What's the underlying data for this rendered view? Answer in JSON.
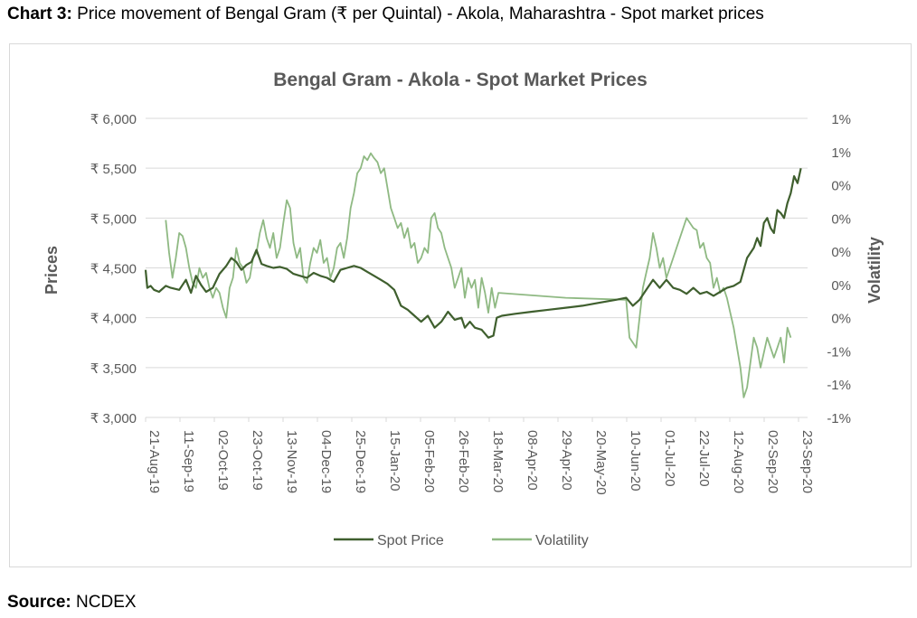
{
  "caption": {
    "label": "Chart 3:",
    "text": "Price movement of Bengal Gram (₹ per Quintal) - Akola, Maharashtra - Spot market prices"
  },
  "source": {
    "label": "Source:",
    "text": "NCDEX"
  },
  "colors": {
    "spot": "#3f5f2e",
    "volatility": "#8fb983",
    "grid": "#d9d9d9",
    "axis_text": "#595959",
    "title": "#595959"
  },
  "chart_data": {
    "type": "line",
    "title": "Bengal Gram - Akola - Spot Market Prices",
    "ylabel": "Prices",
    "y2label": "Volatility",
    "ylim": [
      3000,
      6000
    ],
    "y_ticks": [
      "₹ 6,000",
      "₹ 5,500",
      "₹ 5,000",
      "₹ 4,500",
      "₹ 4,000",
      "₹ 3,500",
      "₹ 3,000"
    ],
    "y2_ticks": [
      "1%",
      "1%",
      "0%",
      "0%",
      "0%",
      "0%",
      "0%",
      "-1%",
      "-1%",
      "-1%"
    ],
    "x_ticks": [
      "21-Aug-19",
      "11-Sep-19",
      "02-Oct-19",
      "23-Oct-19",
      "13-Nov-19",
      "04-Dec-19",
      "25-Dec-19",
      "15-Jan-20",
      "05-Feb-20",
      "26-Feb-20",
      "18-Mar-20",
      "08-Apr-20",
      "29-Apr-20",
      "20-May-20",
      "10-Jun-20",
      "01-Jul-20",
      "22-Jul-20",
      "12-Aug-20",
      "02-Sep-20",
      "23-Sep-20"
    ],
    "legend": [
      "Spot Price",
      "Volatility"
    ],
    "legend_position": "bottom",
    "series": [
      {
        "name": "Spot Price",
        "axis": "left",
        "points": [
          [
            0,
            4480
          ],
          [
            1,
            4300
          ],
          [
            3,
            4320
          ],
          [
            5,
            4280
          ],
          [
            8,
            4260
          ],
          [
            12,
            4320
          ],
          [
            15,
            4300
          ],
          [
            20,
            4280
          ],
          [
            24,
            4380
          ],
          [
            27,
            4250
          ],
          [
            30,
            4420
          ],
          [
            33,
            4330
          ],
          [
            36,
            4260
          ],
          [
            40,
            4300
          ],
          [
            44,
            4440
          ],
          [
            48,
            4520
          ],
          [
            51,
            4600
          ],
          [
            54,
            4560
          ],
          [
            57,
            4480
          ],
          [
            60,
            4530
          ],
          [
            63,
            4560
          ],
          [
            66,
            4680
          ],
          [
            69,
            4540
          ],
          [
            72,
            4520
          ],
          [
            76,
            4500
          ],
          [
            80,
            4510
          ],
          [
            84,
            4490
          ],
          [
            88,
            4440
          ],
          [
            92,
            4420
          ],
          [
            96,
            4400
          ],
          [
            100,
            4450
          ],
          [
            104,
            4420
          ],
          [
            108,
            4400
          ],
          [
            112,
            4360
          ],
          [
            116,
            4480
          ],
          [
            120,
            4500
          ],
          [
            124,
            4520
          ],
          [
            128,
            4500
          ],
          [
            132,
            4460
          ],
          [
            136,
            4420
          ],
          [
            140,
            4380
          ],
          [
            144,
            4340
          ],
          [
            148,
            4280
          ],
          [
            152,
            4120
          ],
          [
            156,
            4080
          ],
          [
            160,
            4020
          ],
          [
            164,
            3960
          ],
          [
            168,
            4020
          ],
          [
            172,
            3900
          ],
          [
            176,
            3960
          ],
          [
            180,
            4060
          ],
          [
            184,
            3980
          ],
          [
            188,
            4000
          ],
          [
            190,
            3900
          ],
          [
            193,
            3960
          ],
          [
            196,
            3900
          ],
          [
            200,
            3880
          ],
          [
            204,
            3800
          ],
          [
            207,
            3820
          ],
          [
            209,
            4000
          ],
          [
            212,
            4020
          ],
          [
            220,
            4040
          ],
          [
            230,
            4060
          ],
          [
            240,
            4080
          ],
          [
            250,
            4100
          ],
          [
            260,
            4120
          ],
          [
            270,
            4150
          ],
          [
            280,
            4180
          ],
          [
            286,
            4200
          ],
          [
            290,
            4120
          ],
          [
            294,
            4180
          ],
          [
            298,
            4280
          ],
          [
            302,
            4380
          ],
          [
            306,
            4300
          ],
          [
            310,
            4380
          ],
          [
            314,
            4300
          ],
          [
            318,
            4280
          ],
          [
            322,
            4240
          ],
          [
            326,
            4300
          ],
          [
            330,
            4240
          ],
          [
            334,
            4260
          ],
          [
            338,
            4220
          ],
          [
            342,
            4260
          ],
          [
            346,
            4300
          ],
          [
            350,
            4320
          ],
          [
            354,
            4360
          ],
          [
            358,
            4600
          ],
          [
            362,
            4700
          ],
          [
            364,
            4800
          ],
          [
            366,
            4720
          ],
          [
            368,
            4950
          ],
          [
            370,
            5000
          ],
          [
            372,
            4900
          ],
          [
            374,
            4850
          ],
          [
            376,
            5080
          ],
          [
            378,
            5050
          ],
          [
            380,
            5000
          ],
          [
            382,
            5150
          ],
          [
            384,
            5250
          ],
          [
            386,
            5420
          ],
          [
            388,
            5350
          ],
          [
            390,
            5500
          ]
        ]
      },
      {
        "name": "Volatility",
        "axis": "right",
        "points": [
          [
            12,
            4980
          ],
          [
            14,
            4650
          ],
          [
            16,
            4400
          ],
          [
            18,
            4600
          ],
          [
            20,
            4850
          ],
          [
            22,
            4820
          ],
          [
            24,
            4700
          ],
          [
            26,
            4500
          ],
          [
            28,
            4350
          ],
          [
            30,
            4300
          ],
          [
            32,
            4500
          ],
          [
            34,
            4400
          ],
          [
            36,
            4450
          ],
          [
            38,
            4300
          ],
          [
            40,
            4200
          ],
          [
            42,
            4300
          ],
          [
            44,
            4250
          ],
          [
            46,
            4100
          ],
          [
            48,
            4000
          ],
          [
            50,
            4300
          ],
          [
            52,
            4400
          ],
          [
            54,
            4700
          ],
          [
            56,
            4550
          ],
          [
            58,
            4500
          ],
          [
            60,
            4350
          ],
          [
            62,
            4400
          ],
          [
            64,
            4600
          ],
          [
            66,
            4650
          ],
          [
            68,
            4850
          ],
          [
            70,
            4980
          ],
          [
            72,
            4800
          ],
          [
            74,
            4700
          ],
          [
            76,
            4850
          ],
          [
            78,
            4600
          ],
          [
            80,
            4700
          ],
          [
            82,
            4950
          ],
          [
            84,
            5180
          ],
          [
            86,
            5100
          ],
          [
            88,
            4750
          ],
          [
            90,
            4600
          ],
          [
            92,
            4700
          ],
          [
            94,
            4400
          ],
          [
            96,
            4350
          ],
          [
            98,
            4550
          ],
          [
            100,
            4700
          ],
          [
            102,
            4650
          ],
          [
            104,
            4780
          ],
          [
            106,
            4550
          ],
          [
            108,
            4600
          ],
          [
            110,
            4400
          ],
          [
            112,
            4500
          ],
          [
            114,
            4700
          ],
          [
            116,
            4750
          ],
          [
            118,
            4600
          ],
          [
            120,
            4800
          ],
          [
            122,
            5100
          ],
          [
            124,
            5250
          ],
          [
            126,
            5450
          ],
          [
            128,
            5500
          ],
          [
            130,
            5620
          ],
          [
            132,
            5580
          ],
          [
            134,
            5650
          ],
          [
            136,
            5600
          ],
          [
            138,
            5560
          ],
          [
            140,
            5450
          ],
          [
            142,
            5500
          ],
          [
            144,
            5300
          ],
          [
            146,
            5100
          ],
          [
            148,
            5000
          ],
          [
            150,
            4900
          ],
          [
            152,
            4950
          ],
          [
            154,
            4800
          ],
          [
            156,
            4900
          ],
          [
            158,
            4700
          ],
          [
            160,
            4750
          ],
          [
            162,
            4550
          ],
          [
            164,
            4600
          ],
          [
            166,
            4700
          ],
          [
            168,
            4650
          ],
          [
            170,
            5000
          ],
          [
            172,
            5050
          ],
          [
            174,
            4900
          ],
          [
            176,
            4850
          ],
          [
            178,
            4700
          ],
          [
            180,
            4600
          ],
          [
            182,
            4500
          ],
          [
            184,
            4300
          ],
          [
            186,
            4400
          ],
          [
            188,
            4500
          ],
          [
            190,
            4200
          ],
          [
            192,
            4400
          ],
          [
            194,
            4300
          ],
          [
            196,
            4380
          ],
          [
            198,
            4100
          ],
          [
            200,
            4400
          ],
          [
            202,
            4250
          ],
          [
            204,
            4050
          ],
          [
            206,
            4300
          ],
          [
            208,
            4100
          ],
          [
            210,
            4250
          ],
          [
            250,
            4200
          ],
          [
            286,
            4180
          ],
          [
            288,
            3800
          ],
          [
            290,
            3750
          ],
          [
            292,
            3700
          ],
          [
            294,
            4000
          ],
          [
            296,
            4300
          ],
          [
            298,
            4450
          ],
          [
            300,
            4600
          ],
          [
            302,
            4850
          ],
          [
            304,
            4700
          ],
          [
            306,
            4500
          ],
          [
            308,
            4600
          ],
          [
            310,
            4400
          ],
          [
            312,
            4500
          ],
          [
            314,
            4600
          ],
          [
            316,
            4700
          ],
          [
            318,
            4800
          ],
          [
            320,
            4900
          ],
          [
            322,
            5000
          ],
          [
            324,
            4950
          ],
          [
            326,
            4900
          ],
          [
            328,
            4880
          ],
          [
            330,
            4700
          ],
          [
            332,
            4750
          ],
          [
            334,
            4600
          ],
          [
            336,
            4550
          ],
          [
            338,
            4300
          ],
          [
            340,
            4400
          ],
          [
            342,
            4250
          ],
          [
            344,
            4300
          ],
          [
            346,
            4200
          ],
          [
            348,
            4050
          ],
          [
            350,
            3900
          ],
          [
            352,
            3700
          ],
          [
            354,
            3500
          ],
          [
            356,
            3200
          ],
          [
            358,
            3300
          ],
          [
            360,
            3550
          ],
          [
            362,
            3800
          ],
          [
            364,
            3700
          ],
          [
            366,
            3500
          ],
          [
            368,
            3650
          ],
          [
            370,
            3800
          ],
          [
            372,
            3700
          ],
          [
            374,
            3600
          ],
          [
            376,
            3700
          ],
          [
            378,
            3800
          ],
          [
            380,
            3550
          ],
          [
            382,
            3900
          ],
          [
            384,
            3800
          ]
        ]
      }
    ]
  }
}
